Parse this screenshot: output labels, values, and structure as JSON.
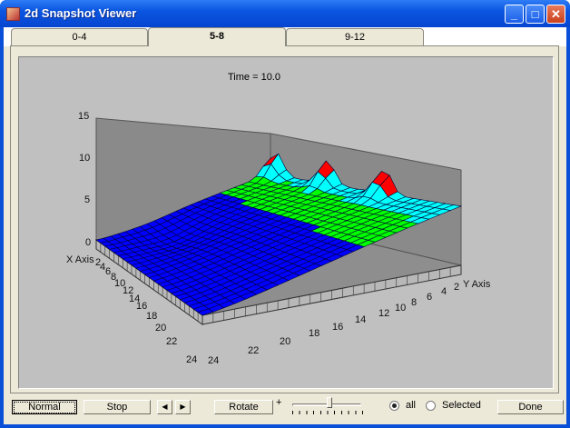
{
  "window": {
    "title": "2d Snapshot Viewer",
    "minimize": "_",
    "maximize": "□",
    "close": "✕"
  },
  "tabs": [
    {
      "label": "0-4"
    },
    {
      "label": "5-8",
      "selected": true
    },
    {
      "label": "9-12"
    }
  ],
  "plot": {
    "time_label": "Time =  10.0"
  },
  "chart_data": {
    "type": "surface",
    "title": "Time =  10.0",
    "xlabel": "X Axis",
    "ylabel": "Y Axis",
    "z_ticks": [
      "0",
      "5",
      "10",
      "15"
    ],
    "x_ticks": [
      "2",
      "4",
      "6",
      "8",
      "10",
      "12",
      "14",
      "16",
      "18",
      "20",
      "22",
      "24"
    ],
    "y_ticks": [
      "2",
      "4",
      "6",
      "8",
      "10",
      "12",
      "14",
      "16",
      "18",
      "20",
      "22",
      "24"
    ],
    "zlim": [
      0,
      15
    ],
    "color_bands": [
      {
        "max": 5,
        "color": "#0000ff"
      },
      {
        "max": 7.5,
        "color": "#00ff00"
      },
      {
        "max": 10,
        "color": "#00ffff"
      },
      {
        "max": 15,
        "color": "#ff0000"
      }
    ]
  },
  "controls": {
    "normal": "Normal",
    "stop": "Stop",
    "prev": "◀",
    "next": "▶",
    "rotate": "Rotate",
    "plus": "+",
    "slider_value": 0.5,
    "radio_all": "all",
    "radio_selected": "Selected",
    "done": "Done"
  }
}
